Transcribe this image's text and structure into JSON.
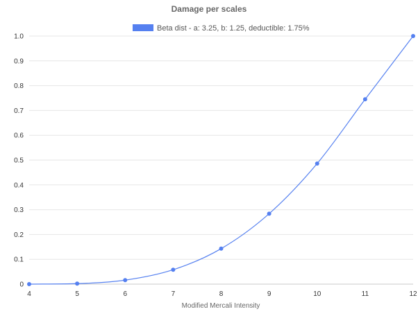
{
  "chart_data": {
    "type": "line",
    "title": "Damage per scales",
    "xlabel": "Modified Mercali Intensity",
    "ylabel": "",
    "xlim": [
      4,
      12
    ],
    "ylim": [
      0,
      1.0
    ],
    "x_ticks": [
      "4",
      "5",
      "6",
      "7",
      "8",
      "9",
      "10",
      "11",
      "12"
    ],
    "y_ticks": [
      "0",
      "0.1",
      "0.2",
      "0.3",
      "0.4",
      "0.5",
      "0.6",
      "0.7",
      "0.8",
      "0.9",
      "1.0"
    ],
    "grid": true,
    "legend_position": "top",
    "series": [
      {
        "name": "Beta dist - a: 3.25, b: 1.25, deductible: 1.75%",
        "color": "#5580f0",
        "x": [
          4,
          5,
          6,
          7,
          8,
          9,
          10,
          11,
          12
        ],
        "y": [
          0.0,
          0.002,
          0.016,
          0.058,
          0.143,
          0.284,
          0.486,
          0.745,
          1.0
        ]
      }
    ]
  }
}
